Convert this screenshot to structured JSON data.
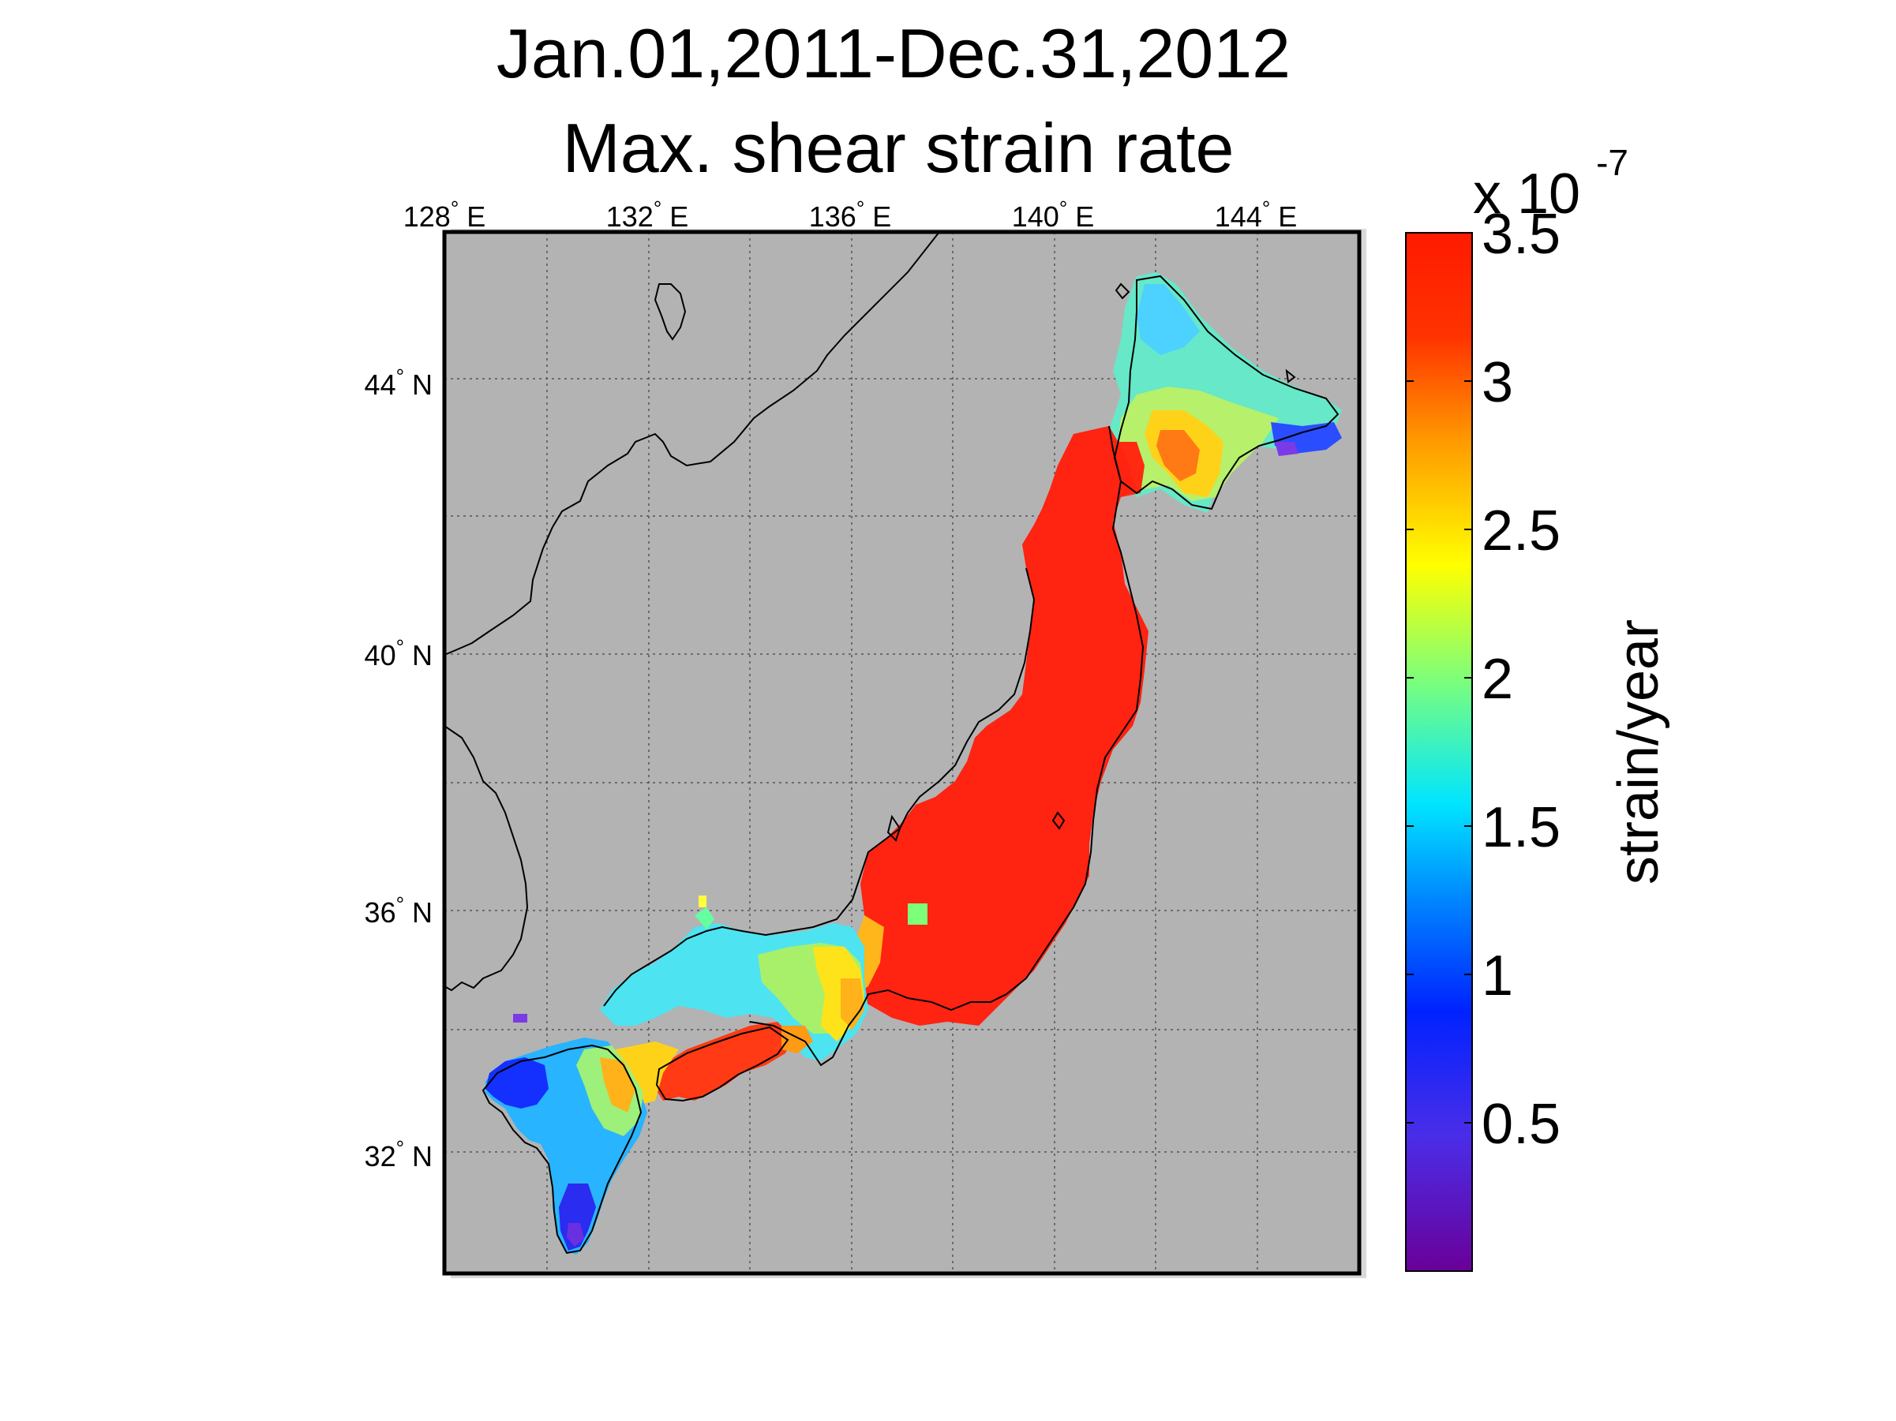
{
  "title_lines": [
    "Jan.01,2011-Dec.31,2012",
    "Max. shear strain rate"
  ],
  "map": {
    "background_color": "#b3b3b3",
    "lon_ticks": [
      {
        "value": 128,
        "label": "128",
        "suffix": "E"
      },
      {
        "value": 132,
        "label": "132",
        "suffix": "E"
      },
      {
        "value": 136,
        "label": "136",
        "suffix": "E"
      },
      {
        "value": 140,
        "label": "140",
        "suffix": "E"
      },
      {
        "value": 144,
        "label": "144",
        "suffix": "E"
      }
    ],
    "lat_ticks": [
      {
        "value": 44,
        "label": "44",
        "suffix": "N"
      },
      {
        "value": 40,
        "label": "40",
        "suffix": "N"
      },
      {
        "value": 36,
        "label": "36",
        "suffix": "N"
      },
      {
        "value": 32,
        "label": "32",
        "suffix": "N"
      }
    ],
    "degree_mark": "°",
    "regions": [
      {
        "name": "Hokkaido",
        "value": 2.0
      },
      {
        "name": "Honshu",
        "value": 3.5
      },
      {
        "name": "Chugoku",
        "value": 1.8
      },
      {
        "name": "Shikoku",
        "value": 3.2
      },
      {
        "name": "Kyushu",
        "value": 1.0
      }
    ]
  },
  "colorbar": {
    "multiplier_base": "x 10",
    "multiplier_exponent": "-7",
    "ticks": [
      {
        "value": 3.5,
        "label": "3.5"
      },
      {
        "value": 3,
        "label": "3"
      },
      {
        "value": 2.5,
        "label": "2.5"
      },
      {
        "value": 2,
        "label": "2"
      },
      {
        "value": 1.5,
        "label": "1.5"
      },
      {
        "value": 1,
        "label": "1"
      },
      {
        "value": 0.5,
        "label": "0.5"
      }
    ],
    "range": [
      0,
      3.5
    ],
    "label": "strain/year",
    "colormap": "jet"
  }
}
